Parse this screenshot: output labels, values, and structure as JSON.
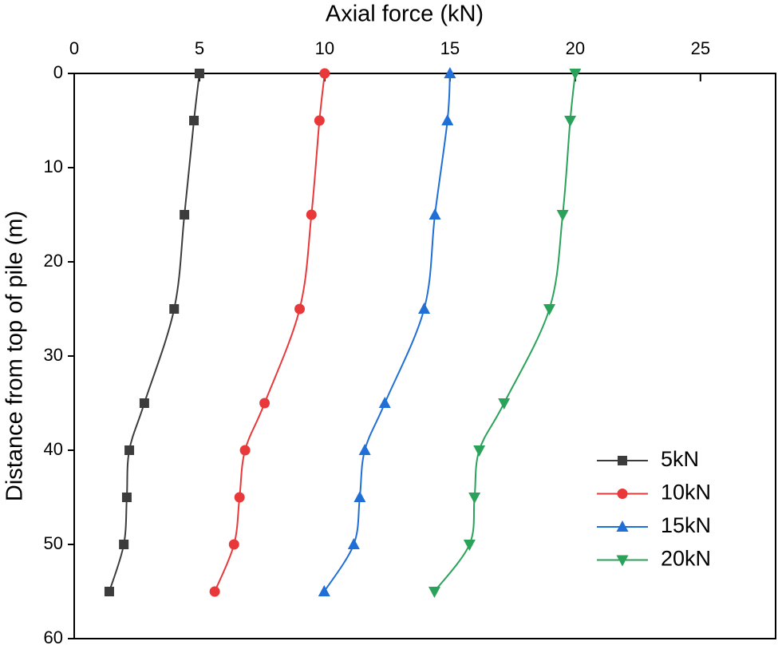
{
  "chart_data": {
    "type": "line",
    "x_label": "Axial force (kN)",
    "y_label": "Distance from top of pile (m)",
    "y": [
      0,
      5,
      15,
      25,
      35,
      40,
      45,
      50,
      55
    ],
    "series": [
      {
        "name": "5kN",
        "color": "#3c3c3c",
        "marker": "square",
        "values": [
          5.0,
          4.78,
          4.4,
          3.99,
          2.8,
          2.2,
          2.1,
          1.98,
          1.4
        ]
      },
      {
        "name": "10kN",
        "color": "#e8383a",
        "marker": "circle",
        "values": [
          10.0,
          9.79,
          9.47,
          9.0,
          7.6,
          6.82,
          6.6,
          6.38,
          5.61
        ]
      },
      {
        "name": "15kN",
        "color": "#1f6fd6",
        "marker": "triangle-up",
        "values": [
          15.0,
          14.9,
          14.4,
          13.97,
          12.4,
          11.6,
          11.4,
          11.16,
          9.98
        ]
      },
      {
        "name": "20kN",
        "color": "#2aa25a",
        "marker": "triangle-down",
        "values": [
          20.0,
          19.8,
          19.5,
          18.97,
          17.16,
          16.17,
          15.98,
          15.78,
          14.38
        ]
      }
    ],
    "xlim": [
      0,
      28
    ],
    "xticks": [
      0,
      5,
      10,
      15,
      20,
      25
    ],
    "ylim": [
      0,
      60
    ],
    "yticks": [
      0,
      10,
      20,
      30,
      40,
      50,
      60
    ],
    "y_inverted": true,
    "legend": "lower right"
  }
}
